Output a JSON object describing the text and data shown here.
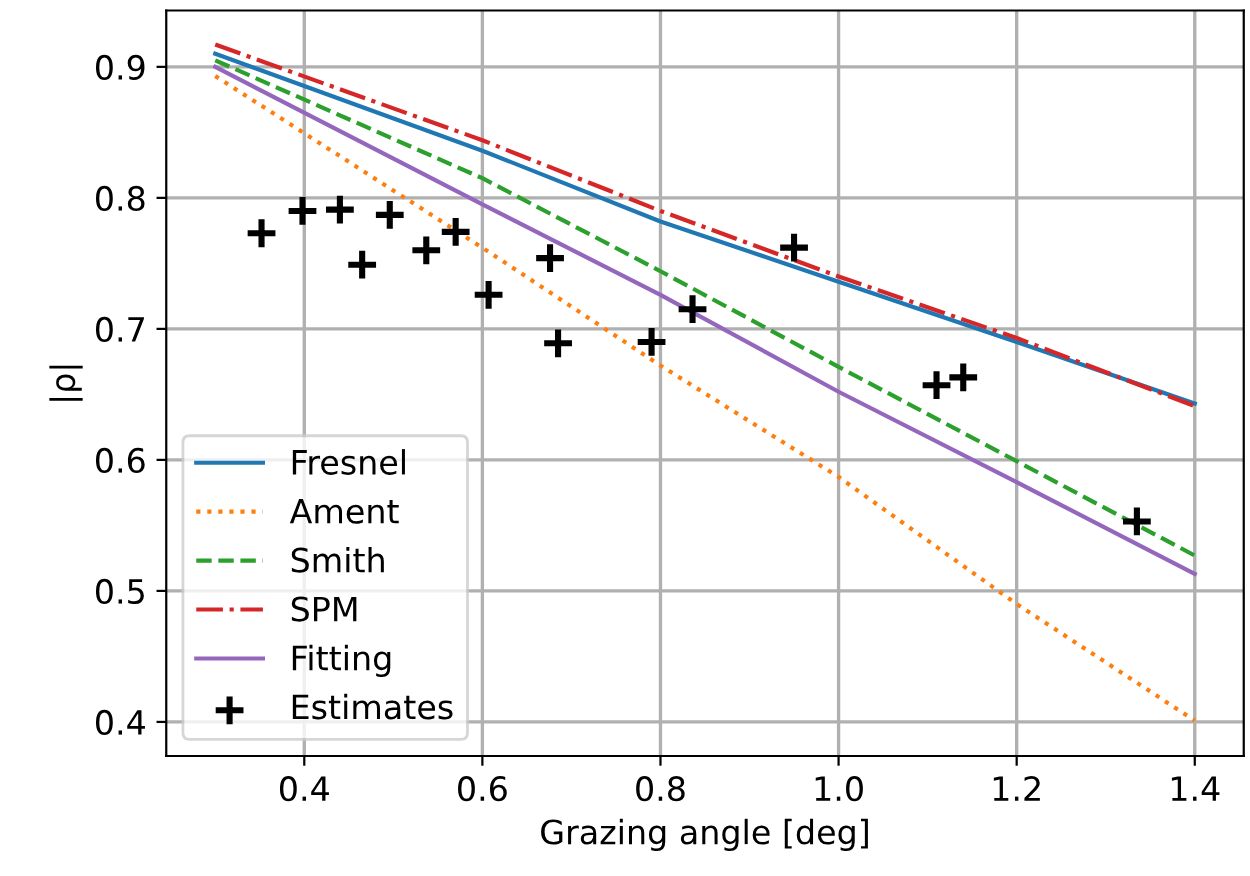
{
  "chart_data": {
    "type": "line",
    "xlabel": "Grazing angle [deg]",
    "ylabel": "|ρ|",
    "xlim": [
      0.245,
      1.455
    ],
    "ylim": [
      0.374,
      0.943
    ],
    "xticks": [
      0.4,
      0.6,
      0.8,
      {
        "value": 1,
        "label": "1.0"
      },
      1.2,
      1.4
    ],
    "yticks": [
      0.4,
      0.5,
      0.6,
      0.7,
      0.8,
      0.9
    ],
    "grid": true,
    "legend": "bottom left",
    "series": [
      {
        "name": "Fresnel",
        "color": "#1f77b4",
        "line_style": "solid",
        "x": [
          0.3,
          0.6,
          0.8,
          1.0,
          1.2,
          1.4
        ],
        "values": [
          0.91,
          0.836,
          0.782,
          0.736,
          0.69,
          0.643
        ]
      },
      {
        "name": "Ament",
        "color": "#ff7f0e",
        "line_style": "dotted",
        "x": [
          0.3,
          0.6,
          0.8,
          1.0,
          1.2,
          1.4
        ],
        "values": [
          0.893,
          0.762,
          0.672,
          0.587,
          0.49,
          0.401
        ]
      },
      {
        "name": "Smith",
        "color": "#2ca02c",
        "line_style": "dashed",
        "x": [
          0.3,
          0.6,
          0.8,
          1.0,
          1.2,
          1.4
        ],
        "values": [
          0.905,
          0.815,
          0.744,
          0.671,
          0.599,
          0.527
        ]
      },
      {
        "name": "SPM",
        "color": "#d62728",
        "line_style": "dashdot",
        "x": [
          0.3,
          0.6,
          0.8,
          1.0,
          1.2,
          1.4
        ],
        "values": [
          0.917,
          0.844,
          0.79,
          0.74,
          0.693,
          0.641
        ]
      },
      {
        "name": "Fitting",
        "color": "#9467bd",
        "line_style": "solid",
        "x": [
          0.3,
          0.6,
          0.8,
          1.0,
          1.2,
          1.4
        ],
        "values": [
          0.9,
          0.795,
          0.726,
          0.652,
          0.583,
          0.513
        ]
      },
      {
        "name": "Estimates",
        "type": "scatter",
        "marker": "cross",
        "color": "#000000",
        "x": [
          0.352,
          0.398,
          0.44,
          0.465,
          0.496,
          0.537,
          0.57,
          0.607,
          0.676,
          0.685,
          0.79,
          0.836,
          0.95,
          1.11,
          1.14,
          1.335
        ],
        "values": [
          0.773,
          0.79,
          0.791,
          0.749,
          0.787,
          0.76,
          0.774,
          0.726,
          0.754,
          0.689,
          0.69,
          0.715,
          0.762,
          0.657,
          0.663,
          0.553
        ]
      }
    ]
  }
}
